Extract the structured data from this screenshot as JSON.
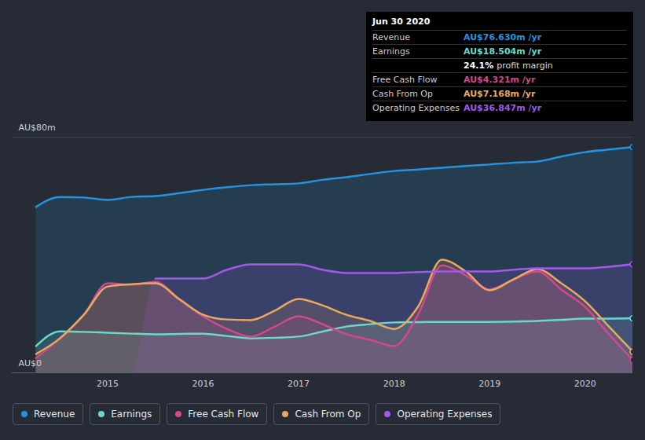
{
  "chart_data": {
    "type": "area",
    "x": [
      2014.25,
      2014.5,
      2014.75,
      2015,
      2015.25,
      2015.5,
      2015.75,
      2016,
      2016.25,
      2016.5,
      2016.75,
      2017,
      2017.25,
      2017.5,
      2017.75,
      2018,
      2018.25,
      2018.5,
      2018.75,
      2019,
      2019.25,
      2019.5,
      2019.75,
      2020,
      2020.25,
      2020.5
    ],
    "xlim": [
      2014,
      2020.5
    ],
    "xticks": [
      2015,
      2016,
      2017,
      2018,
      2019,
      2020
    ],
    "ylim": [
      0,
      80
    ],
    "yticks": [
      {
        "value": 0,
        "label": "AU$0"
      },
      {
        "value": 80,
        "label": "AU$80m"
      }
    ],
    "grid": true,
    "legend": "bottom",
    "series": [
      {
        "name": "Revenue",
        "color": "#2394df",
        "values": [
          56.3,
          59.7,
          59.5,
          58.7,
          59.7,
          60,
          61,
          62.1,
          63,
          63.7,
          64,
          64.3,
          65.5,
          66.4,
          67.5,
          68.5,
          69,
          69.6,
          70.2,
          70.7,
          71.3,
          71.7,
          73.4,
          74.9,
          75.8,
          76.63
        ]
      },
      {
        "name": "Earnings",
        "color": "#6ad9cb",
        "values": [
          9.1,
          14.1,
          13.9,
          13.6,
          13.3,
          13.1,
          13.2,
          13.3,
          12.5,
          11.7,
          11.9,
          12.3,
          14,
          15.7,
          16.5,
          17.1,
          17.2,
          17.3,
          17.3,
          17.3,
          17.4,
          17.6,
          18,
          18.4,
          18.4,
          18.504
        ]
      },
      {
        "name": "Free Cash Flow",
        "color": "#d5478d",
        "values": [
          5,
          11.7,
          19.7,
          30.4,
          29.9,
          30.9,
          25,
          19.2,
          14.9,
          12.3,
          15.7,
          19.2,
          16.5,
          13.1,
          11.2,
          9.1,
          19.7,
          36.5,
          33.1,
          28.3,
          31.7,
          34.4,
          28.3,
          22.4,
          13.1,
          4.321
        ]
      },
      {
        "name": "Cash From Op",
        "color": "#e8a95f",
        "values": [
          6.4,
          11.7,
          19.7,
          29.3,
          30.1,
          30.4,
          25,
          19.7,
          18.1,
          17.9,
          21.1,
          25.1,
          22.9,
          19.7,
          17.6,
          14.9,
          22.4,
          38.4,
          34.4,
          28,
          31.7,
          35.2,
          30.4,
          24.3,
          15.7,
          7.168
        ]
      },
      {
        "name": "Operating Expenses",
        "color": "#a258e8",
        "values": [
          null,
          null,
          null,
          null,
          null,
          32,
          32,
          32,
          35,
          36.8,
          36.8,
          36.8,
          35,
          33.9,
          33.9,
          33.9,
          34.2,
          34.4,
          34.4,
          34.4,
          35,
          35.5,
          35.5,
          35.5,
          36,
          36.847
        ]
      }
    ],
    "tooltip": {
      "title": "Jun 30 2020",
      "rows": [
        {
          "label": "Revenue",
          "value": "AU$76.630m /yr",
          "color": "#2394df"
        },
        {
          "label": "Earnings",
          "value": "AU$18.504m /yr",
          "color": "#6ad9cb"
        },
        {
          "label": "",
          "value": "24.1%",
          "extra": "profit margin",
          "color": "#ffffff"
        },
        {
          "label": "Free Cash Flow",
          "value": "AU$4.321m /yr",
          "color": "#d5478d"
        },
        {
          "label": "Cash From Op",
          "value": "AU$7.168m /yr",
          "color": "#e8a95f"
        },
        {
          "label": "Operating Expenses",
          "value": "AU$36.847m /yr",
          "color": "#a258e8"
        }
      ]
    }
  }
}
